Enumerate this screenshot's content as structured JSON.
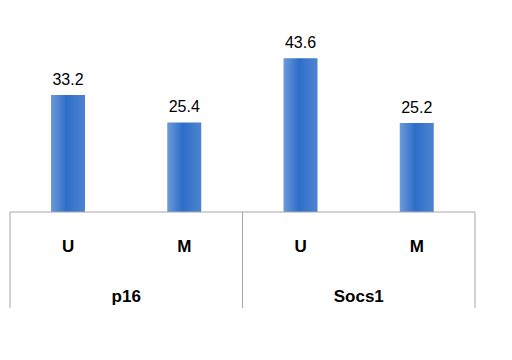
{
  "chart_data": {
    "type": "bar",
    "groups": [
      {
        "label": "p16",
        "categories": [
          "U",
          "M"
        ],
        "values": [
          33.2,
          25.4
        ]
      },
      {
        "label": "Socs1",
        "categories": [
          "U",
          "M"
        ],
        "values": [
          43.6,
          25.2
        ]
      }
    ],
    "color": "#2e6ec8",
    "ylim": [
      0,
      55
    ],
    "data_labels": true,
    "tick_labels": "x",
    "grid": false
  }
}
